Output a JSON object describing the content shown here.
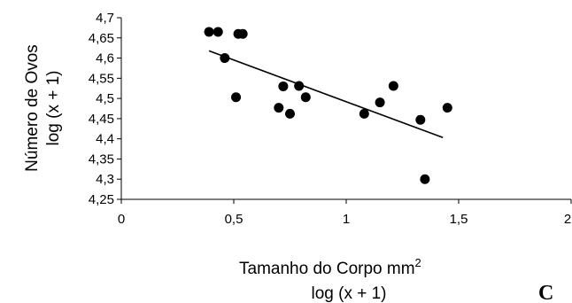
{
  "chart_data": {
    "type": "scatter",
    "panel_label": "C",
    "ylabel_line1": "Número de Ovos",
    "ylabel_line2": "log (x + 1)",
    "xlabel_line1": "Tamanho do Corpo  mm",
    "xlabel_superscript": "2",
    "xlabel_line2": "log (x + 1)",
    "xlim": [
      0,
      2
    ],
    "ylim": [
      4.25,
      4.7
    ],
    "x_ticks": [
      {
        "value": 0,
        "label": "0"
      },
      {
        "value": 0.5,
        "label": "0,5"
      },
      {
        "value": 1,
        "label": "1"
      },
      {
        "value": 1.5,
        "label": "1,5"
      },
      {
        "value": 2,
        "label": "2"
      }
    ],
    "y_ticks": [
      {
        "value": 4.25,
        "label": "4,25"
      },
      {
        "value": 4.3,
        "label": "4,3"
      },
      {
        "value": 4.35,
        "label": "4,35"
      },
      {
        "value": 4.4,
        "label": "4,4"
      },
      {
        "value": 4.45,
        "label": "4,45"
      },
      {
        "value": 4.5,
        "label": "4,5"
      },
      {
        "value": 4.55,
        "label": "4,55"
      },
      {
        "value": 4.6,
        "label": "4,6"
      },
      {
        "value": 4.65,
        "label": "4,65"
      },
      {
        "value": 4.7,
        "label": "4,7"
      }
    ],
    "points": [
      {
        "x": 0.39,
        "y": 4.665
      },
      {
        "x": 0.43,
        "y": 4.665
      },
      {
        "x": 0.46,
        "y": 4.6
      },
      {
        "x": 0.51,
        "y": 4.503
      },
      {
        "x": 0.52,
        "y": 4.66
      },
      {
        "x": 0.54,
        "y": 4.66
      },
      {
        "x": 0.7,
        "y": 4.477
      },
      {
        "x": 0.72,
        "y": 4.53
      },
      {
        "x": 0.75,
        "y": 4.462
      },
      {
        "x": 0.79,
        "y": 4.531
      },
      {
        "x": 0.82,
        "y": 4.503
      },
      {
        "x": 1.08,
        "y": 4.462
      },
      {
        "x": 1.15,
        "y": 4.49
      },
      {
        "x": 1.21,
        "y": 4.531
      },
      {
        "x": 1.33,
        "y": 4.447
      },
      {
        "x": 1.35,
        "y": 4.3
      },
      {
        "x": 1.45,
        "y": 4.477
      }
    ],
    "trendline": {
      "x": [
        0.39,
        1.43
      ],
      "y": [
        4.618,
        4.403
      ]
    },
    "grid": false,
    "legend": "none"
  }
}
